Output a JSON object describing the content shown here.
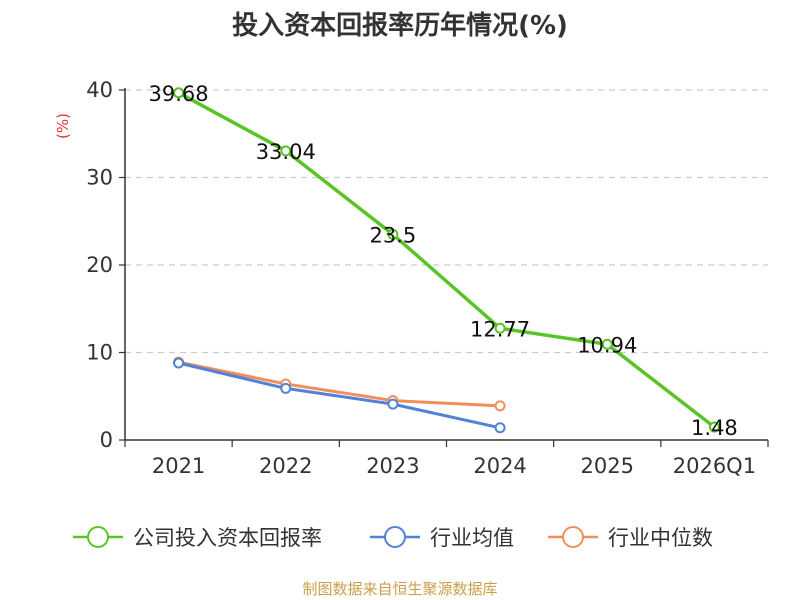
{
  "chart_data": {
    "type": "line",
    "title": "投入资本回报率历年情况(%)",
    "ylabel": "(%)",
    "xlabel": "",
    "categories": [
      "2021",
      "2022",
      "2023",
      "2024",
      "2025",
      "2026Q1"
    ],
    "ylim": [
      0,
      40
    ],
    "yticks": [
      0,
      10,
      20,
      30,
      40
    ],
    "grid": true,
    "legend": "bottom",
    "series": [
      {
        "name": "公司投入资本回报率",
        "color": "#5ac427",
        "values": [
          39.68,
          33.04,
          23.5,
          12.77,
          10.94,
          1.48
        ],
        "labels": [
          "39.68",
          "33.04",
          "23.5",
          "12.77",
          "10.94",
          "1.48"
        ]
      },
      {
        "name": "行业均值",
        "color": "#4f82d8",
        "values": [
          8.8,
          5.9,
          4.1,
          1.4,
          null,
          null
        ]
      },
      {
        "name": "行业中位数",
        "color": "#f28e5c",
        "values": [
          8.9,
          6.4,
          4.5,
          3.9,
          null,
          null
        ]
      }
    ],
    "source": "制图数据来自恒生聚源数据库"
  }
}
